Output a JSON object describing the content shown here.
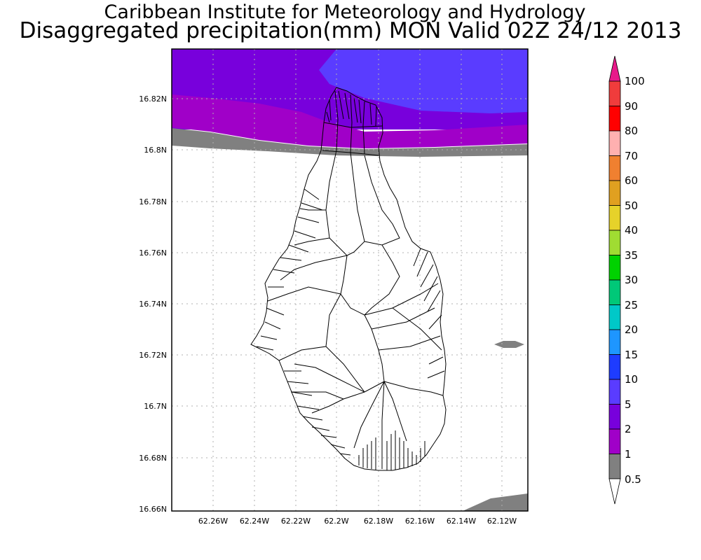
{
  "header": {
    "institute": "Caribbean Institute for Meteorology and Hydrology",
    "product": "Disaggregated precipitation(mm) MON Valid 02Z 24/12 2013"
  },
  "map": {
    "region": "Montserrat",
    "lat_ticks": [
      "16.82N",
      "16.8N",
      "16.78N",
      "16.76N",
      "16.74N",
      "16.72N",
      "16.7N",
      "16.68N",
      "16.66N"
    ],
    "lon_ticks": [
      "62.26W",
      "62.24W",
      "62.22W",
      "62.2W",
      "62.18W",
      "62.16W",
      "62.14W",
      "62.12W"
    ],
    "grid": "dotted"
  },
  "colorbar": {
    "labels": [
      "100",
      "90",
      "80",
      "70",
      "60",
      "50",
      "40",
      "35",
      "30",
      "25",
      "20",
      "15",
      "10",
      "5",
      "2",
      "1",
      "0.5"
    ],
    "colors": {
      "over": "#e8198a",
      "c100": "#f03c3c",
      "c90": "#ff0000",
      "c80": "#ffb0b0",
      "c70": "#f08030",
      "c60": "#e0a020",
      "c50": "#e6d22a",
      "c40": "#a0dc32",
      "c35": "#00d200",
      "c30": "#00c878",
      "c25": "#00c8c8",
      "c20": "#1e96ff",
      "c15": "#1e3cff",
      "c10": "#5a3cff",
      "c5": "#7800dc",
      "c2": "#a000c8",
      "c1": "#808080",
      "under": "#ffffff"
    }
  }
}
